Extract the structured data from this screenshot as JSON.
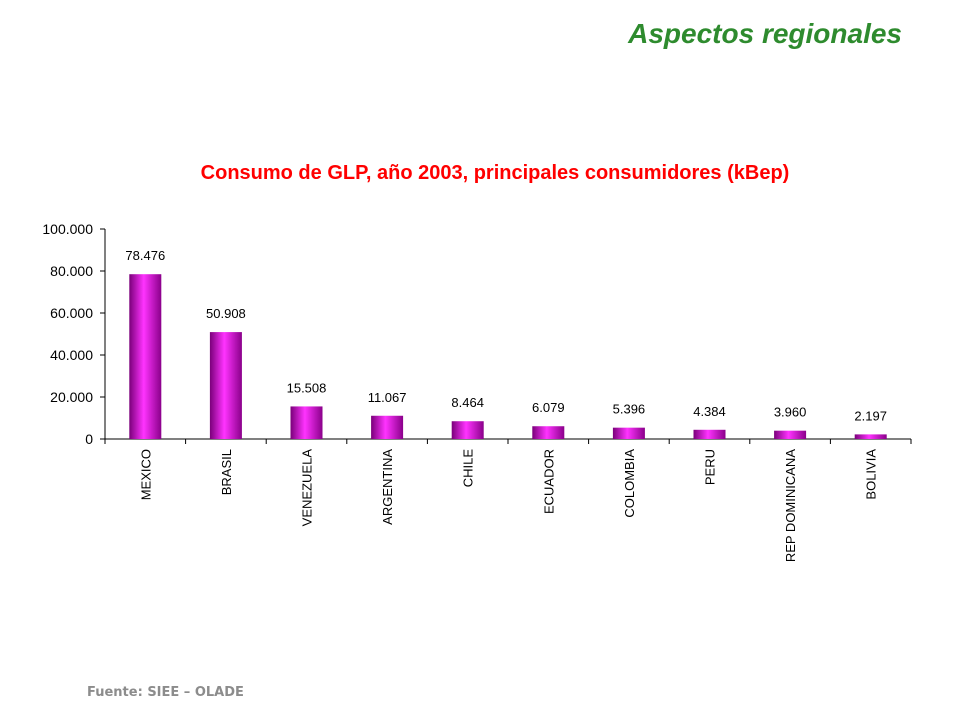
{
  "heading": "Aspectos regionales",
  "source": "Fuente: SIEE – OLADE",
  "chart_data": {
    "type": "bar",
    "title": "Consumo de GLP, año 2003, principales consumidores (kBep)",
    "xlabel": "",
    "ylabel": "",
    "ylim": [
      0,
      100000
    ],
    "yticks": [
      0,
      20000,
      40000,
      60000,
      80000,
      100000
    ],
    "ytick_labels": [
      "0",
      "20.000",
      "40.000",
      "60.000",
      "80.000",
      "100.000"
    ],
    "categories": [
      "MEXICO",
      "BRASIL",
      "VENEZUELA",
      "ARGENTINA",
      "CHILE",
      "ECUADOR",
      "COLOMBIA",
      "PERU",
      "REP DOMINICANA",
      "BOLIVIA"
    ],
    "values": [
      78476,
      50908,
      15508,
      11067,
      8464,
      6079,
      5396,
      4384,
      3960,
      2197
    ],
    "value_labels": [
      "78.476",
      "50.908",
      "15.508",
      "11.067",
      "8.464",
      "6.079",
      "5.396",
      "4.384",
      "3.960",
      "2.197"
    ],
    "bar_color": "#e600e6",
    "grid": false,
    "legend": "none"
  }
}
